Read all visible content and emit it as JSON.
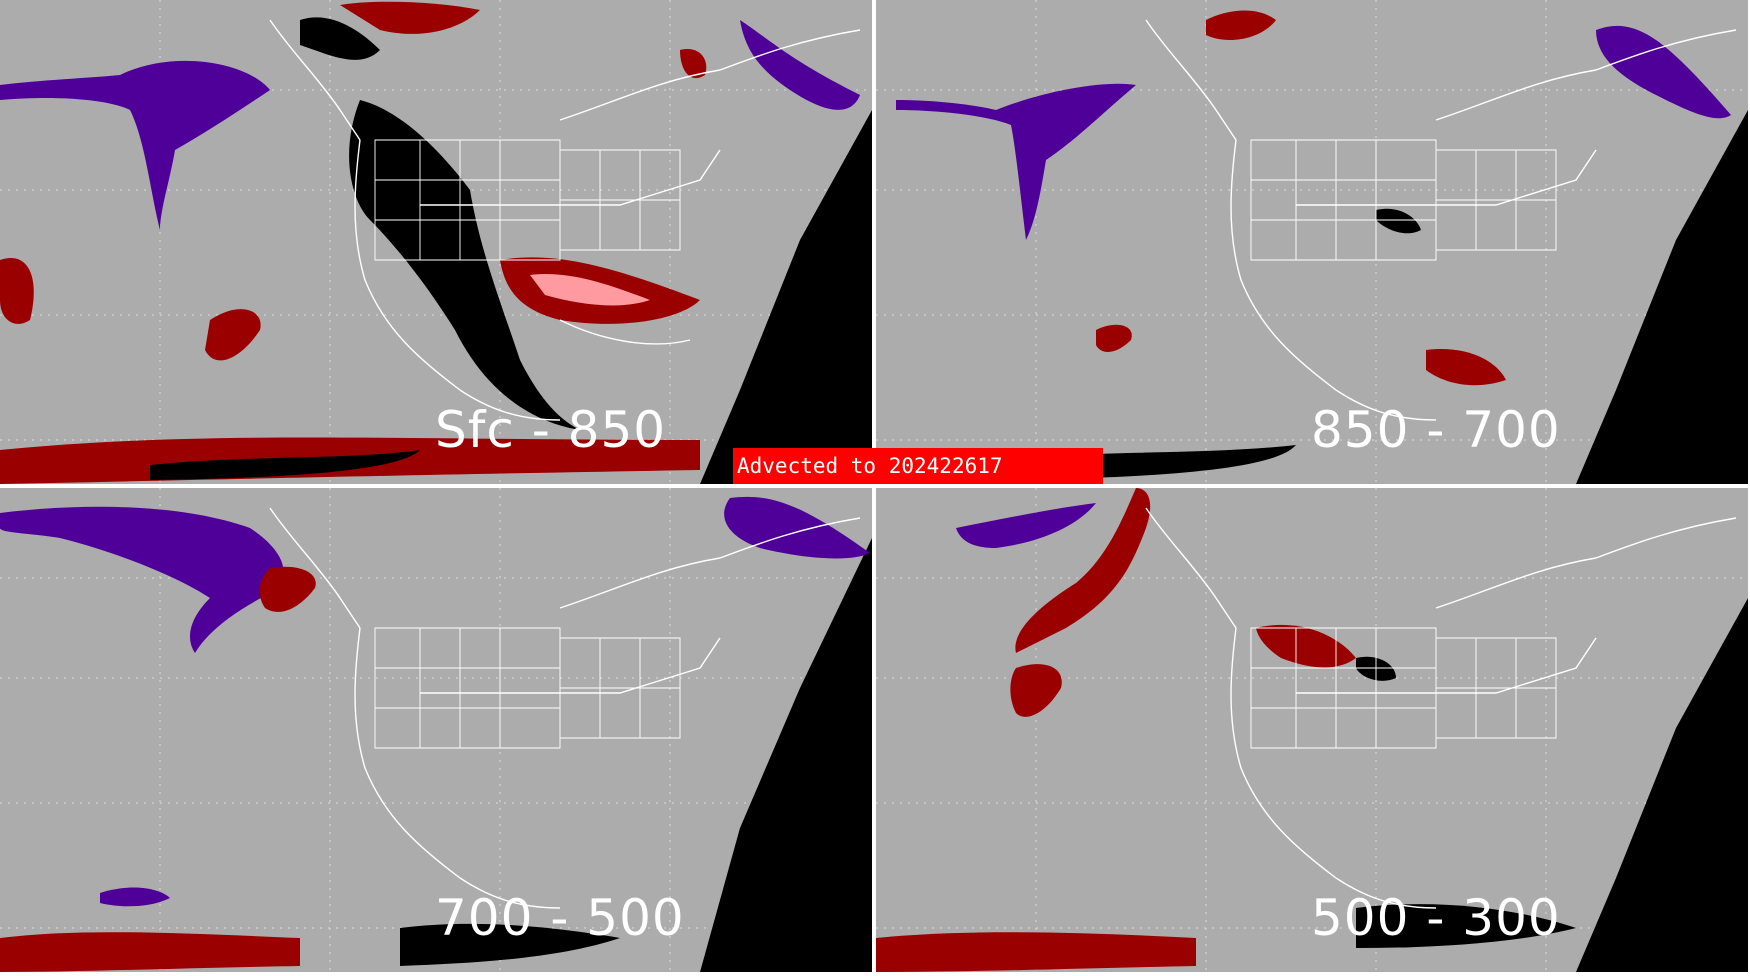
{
  "banner": {
    "label": "Advected to",
    "value": "202422617"
  },
  "panels": [
    {
      "id": "sfc-850",
      "label": "Sfc - 850"
    },
    {
      "id": "850-700",
      "label": "850 - 700"
    },
    {
      "id": "700-500",
      "label": "700 - 500"
    },
    {
      "id": "500-300",
      "label": "500 - 300"
    }
  ],
  "colors": {
    "background": "#acacac",
    "outside_disk": "#000000",
    "dark_red": "#9b0000",
    "light_red": "#ff9aa0",
    "purple": "#4f0099",
    "black": "#000000",
    "boundaries": "#ffffff"
  },
  "icons": [
    "state-boundaries",
    "coastlines",
    "lat-lon-grid"
  ]
}
